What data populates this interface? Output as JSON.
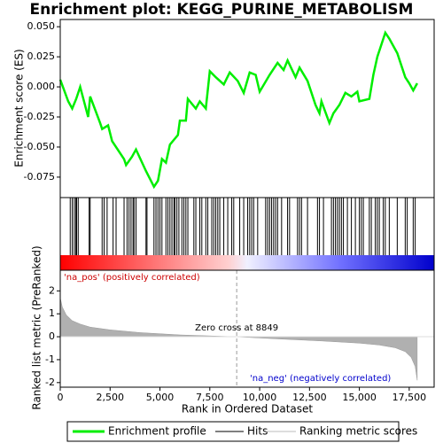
{
  "chart_data": [
    {
      "type": "line",
      "name": "Enrichment profile",
      "title": "Enrichment plot: KEGG_PURINE_METABOLISM",
      "ylabel": "Enrichment score (ES)",
      "color": "#00ee00",
      "xlim": [
        0,
        18750
      ],
      "ylim": [
        -0.092,
        0.056
      ],
      "yticks": [
        {
          "value": 0.05,
          "label": "0.050"
        },
        0.025,
        {
          "value": 0,
          "label": "0.000"
        },
        -0.025,
        {
          "value": -0.05,
          "label": "-0.050"
        },
        -0.075
      ],
      "x": [
        0,
        400,
        600,
        800,
        1000,
        1400,
        1500,
        2000,
        2100,
        2400,
        2600,
        3200,
        3300,
        3600,
        3800,
        4300,
        4700,
        4900,
        5100,
        5300,
        5500,
        5900,
        6000,
        6300,
        6400,
        6800,
        7000,
        7300,
        7500,
        7800,
        8200,
        8500,
        8900,
        9200,
        9500,
        9800,
        10000,
        10500,
        10900,
        11200,
        11400,
        11800,
        12000,
        12400,
        12800,
        13000,
        13100,
        13500,
        13700,
        14000,
        14300,
        14600,
        14900,
        15000,
        15500,
        15700,
        15900,
        16100,
        16300,
        16500,
        16900,
        17300,
        17500,
        17700,
        17900
      ],
      "values": [
        0.006,
        -0.012,
        -0.018,
        -0.01,
        0,
        -0.025,
        -0.008,
        -0.03,
        -0.035,
        -0.032,
        -0.045,
        -0.06,
        -0.065,
        -0.058,
        -0.052,
        -0.07,
        -0.083,
        -0.078,
        -0.06,
        -0.063,
        -0.048,
        -0.04,
        -0.028,
        -0.028,
        -0.01,
        -0.018,
        -0.012,
        -0.018,
        0.013,
        0.008,
        0.002,
        0.012,
        0.005,
        -0.005,
        0.012,
        0.01,
        -0.004,
        0.01,
        0.02,
        0.014,
        0.022,
        0.008,
        0.016,
        0.005,
        -0.015,
        -0.022,
        -0.012,
        -0.03,
        -0.022,
        -0.015,
        -0.005,
        -0.008,
        -0.004,
        -0.012,
        -0.01,
        0.01,
        0.025,
        0.035,
        0.045,
        0.04,
        0.028,
        0.008,
        0.003,
        -0.003,
        0.003
      ]
    },
    {
      "type": "hits",
      "name": "Hits",
      "color": "#000000",
      "xlim": [
        0,
        18750
      ],
      "x": [
        500,
        600,
        700,
        780,
        820,
        900,
        1450,
        1500,
        2100,
        2200,
        2350,
        2650,
        2800,
        3200,
        3350,
        3450,
        3550,
        3650,
        3700,
        3800,
        4300,
        4350,
        4700,
        4800,
        4900,
        5000,
        5100,
        5300,
        5400,
        5500,
        5600,
        5700,
        5750,
        5850,
        5950,
        6100,
        6200,
        6300,
        6400,
        6700,
        6800,
        7000,
        7100,
        7300,
        7400,
        7600,
        7700,
        7800,
        7900,
        8000,
        8200,
        8400,
        8600,
        8700,
        9000,
        9200,
        9400,
        9500,
        9600,
        9700,
        9900,
        10300,
        10400,
        10500,
        10600,
        10700,
        10800,
        10900,
        11100,
        11400,
        11500,
        11900,
        12000,
        12100,
        12400,
        12900,
        13000,
        13200,
        13600,
        13700,
        13800,
        13900,
        14000,
        14100,
        14200,
        14400,
        14600,
        14800,
        15000,
        15100,
        15200,
        15500,
        15600,
        15800,
        15900,
        16000,
        16200,
        16300,
        16500,
        16900,
        17300,
        17400,
        17700,
        17800
      ]
    },
    {
      "type": "area",
      "name": "Ranking metric scores",
      "color": "#b0b0b0",
      "ylabel": "Ranked list metric (PreRanked)",
      "xlabel": "Rank in Ordered Dataset",
      "xlim": [
        0,
        18750
      ],
      "ylim": [
        -2.2,
        2.9
      ],
      "xticks": [
        0,
        {
          "value": 2500,
          "label": "2,500"
        },
        {
          "value": 5000,
          "label": "5,000"
        },
        {
          "value": 7500,
          "label": "7,500"
        },
        {
          "value": 10000,
          "label": "10,000"
        },
        {
          "value": 12500,
          "label": "12,500"
        },
        {
          "value": 15000,
          "label": "15,000"
        },
        {
          "value": 17500,
          "label": "17,500"
        }
      ],
      "yticks": [
        2,
        1,
        0,
        -1,
        -2
      ],
      "x": [
        0,
        100,
        300,
        600,
        1000,
        1500,
        2500,
        4000,
        6000,
        8849,
        11000,
        13000,
        15000,
        16000,
        16800,
        17300,
        17600,
        17800,
        17900
      ],
      "values": [
        1.7,
        1.3,
        0.95,
        0.7,
        0.55,
        0.42,
        0.3,
        0.18,
        0.08,
        0,
        -0.1,
        -0.18,
        -0.28,
        -0.36,
        -0.48,
        -0.65,
        -0.9,
        -1.3,
        -1.9
      ],
      "zero_cross": 8849,
      "zero_cross_label": "Zero cross at 8849",
      "pos_label": "'na_pos' (positively correlated)",
      "neg_label": "'na_neg' (negatively correlated)"
    }
  ]
}
